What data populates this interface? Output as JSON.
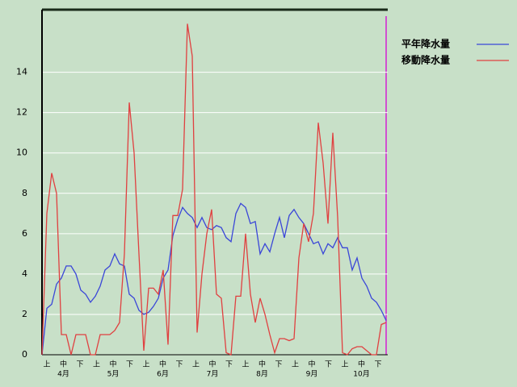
{
  "chart_data": {
    "type": "line",
    "x_labels": [
      "上",
      "中",
      "下",
      "上",
      "中",
      "下",
      "上",
      "中",
      "下",
      "上",
      "中",
      "下",
      "上",
      "中",
      "下",
      "上",
      "中",
      "下",
      "上",
      "中",
      "下"
    ],
    "month_labels": [
      "4月",
      "5月",
      "6月",
      "7月",
      "8月",
      "9月",
      "10月"
    ],
    "x": [
      0,
      3,
      6,
      9,
      12,
      15,
      18,
      21,
      24,
      27,
      30,
      33,
      36,
      39,
      42,
      45,
      48,
      51,
      54,
      57,
      60,
      63,
      66,
      69,
      72,
      75,
      78,
      81,
      84,
      87,
      90,
      93,
      96,
      99,
      102,
      105,
      108,
      111,
      114,
      117,
      120,
      123,
      126,
      129,
      132,
      135,
      138,
      141,
      144,
      147,
      150,
      153,
      156,
      159,
      162,
      165,
      168,
      171,
      174,
      177,
      180,
      183,
      186,
      189,
      192,
      195,
      198,
      201,
      204,
      207,
      210,
      213
    ],
    "xlim": [
      0,
      214
    ],
    "ylim": [
      0,
      17.1
    ],
    "yticks": [
      0,
      2,
      4,
      6,
      8,
      10,
      12,
      14
    ],
    "grid": true,
    "series": [
      {
        "name": "平年降水量",
        "color": "#3a46d8",
        "values": [
          0,
          2.3,
          2.5,
          3.5,
          3.8,
          4.4,
          4.4,
          4.0,
          3.2,
          3.0,
          2.6,
          2.9,
          3.4,
          4.2,
          4.4,
          5.0,
          4.5,
          4.4,
          3.0,
          2.8,
          2.2,
          2.0,
          2.1,
          2.4,
          2.8,
          3.8,
          4.2,
          5.9,
          6.7,
          7.3,
          7.0,
          6.8,
          6.3,
          6.8,
          6.3,
          6.2,
          6.4,
          6.3,
          5.8,
          5.6,
          7.0,
          7.5,
          7.3,
          6.5,
          6.6,
          5.0,
          5.5,
          5.1,
          6.0,
          6.8,
          5.8,
          6.9,
          7.2,
          6.8,
          6.5,
          6.0,
          5.5,
          5.6,
          5.0,
          5.5,
          5.3,
          5.8,
          5.3,
          5.3,
          4.2,
          4.8,
          3.8,
          3.4,
          2.8,
          2.6,
          2.2,
          1.7
        ]
      },
      {
        "name": "移動降水量",
        "color": "#e04040",
        "values": [
          0,
          7.0,
          9.0,
          8.0,
          1.0,
          1.0,
          0,
          1.0,
          1.0,
          1.0,
          0,
          0,
          1.0,
          1.0,
          1.0,
          1.2,
          1.6,
          5.0,
          12.5,
          10.0,
          5.0,
          0.2,
          3.3,
          3.3,
          3.0,
          4.2,
          0.5,
          6.9,
          6.9,
          8.2,
          16.4,
          14.8,
          1.1,
          4.0,
          6.0,
          7.2,
          3.0,
          2.8,
          0.1,
          0,
          2.9,
          2.9,
          6.0,
          3.0,
          1.6,
          2.8,
          2.0,
          1.0,
          0.1,
          0.8,
          0.8,
          0.7,
          0.8,
          4.8,
          6.5,
          5.6,
          7.0,
          11.5,
          9.5,
          6.5,
          11.0,
          6.8,
          0.1,
          0,
          0.3,
          0.4,
          0.4,
          0.2,
          0,
          0,
          1.5,
          1.6
        ]
      }
    ]
  }
}
